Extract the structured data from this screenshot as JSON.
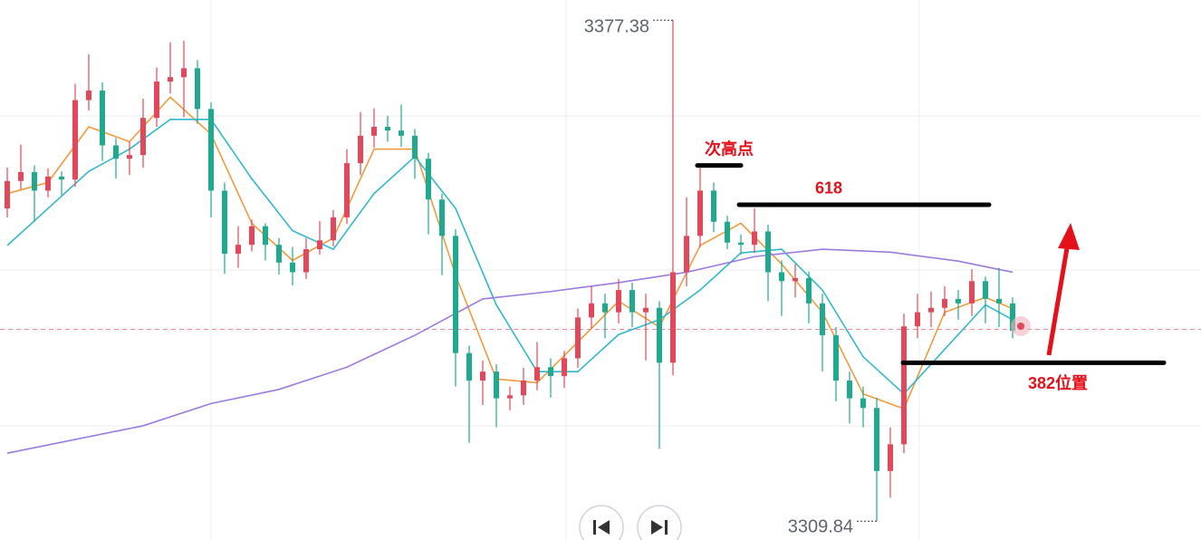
{
  "chart_data": {
    "type": "candlestick",
    "ylim": [
      3307.3,
      3380.1
    ],
    "up_color": "#e2485a",
    "down_color": "#1fa98e",
    "open": [
      3352.0,
      3355.7,
      3356.9,
      3354.4,
      3356.3,
      3355.9,
      3366.6,
      3367.9,
      3360.5,
      3358.7,
      3359.2,
      3364.2,
      3369.1,
      3369.7,
      3370.9,
      3365.4,
      3354.4,
      3345.9,
      3347.1,
      3349.6,
      3347.1,
      3344.7,
      3343.4,
      3346.5,
      3347.7,
      3350.8,
      3358.1,
      3361.8,
      3363.0,
      3362.5,
      3361.8,
      3358.7,
      3353.2,
      3348.3,
      3332.5,
      3328.8,
      3330.0,
      3326.4,
      3326.8,
      3328.8,
      3330.6,
      3329.4,
      3331.8,
      3337.3,
      3339.2,
      3338.0,
      3341.0,
      3338.0,
      3338.6,
      3331.2,
      3343.4,
      3348.3,
      3354.4,
      3350.2,
      3347.4,
      3347.1,
      3348.9,
      3343.4,
      3342.2,
      3342.6,
      3339.2,
      3334.9,
      3328.8,
      3326.4,
      3325.1,
      3316.6,
      3320.2,
      3336.1,
      3338.0,
      3338.6,
      3339.8,
      3339.2,
      3342.2,
      3339.8,
      3339.2
    ],
    "high": [
      3357.5,
      3360.6,
      3357.8,
      3357.4,
      3357.0,
      3368.8,
      3372.8,
      3369.0,
      3361.5,
      3361.0,
      3366.8,
      3371.0,
      3374.4,
      3374.6,
      3372.0,
      3366.3,
      3355.5,
      3349.6,
      3350.5,
      3350.0,
      3348.0,
      3346.8,
      3348.0,
      3350.3,
      3351.8,
      3360.0,
      3365.0,
      3365.5,
      3364.5,
      3366.0,
      3362.7,
      3359.5,
      3354.0,
      3349.2,
      3333.5,
      3331.5,
      3331.0,
      3328.0,
      3330.5,
      3334.0,
      3331.8,
      3332.8,
      3338.5,
      3341.5,
      3340.5,
      3342.5,
      3342.0,
      3340.5,
      3339.5,
      3377.38,
      3353.5,
      3357.9,
      3355.5,
      3351.0,
      3348.5,
      3352.0,
      3349.8,
      3345.0,
      3344.5,
      3343.5,
      3340.5,
      3336.0,
      3330.0,
      3328.0,
      3326.5,
      3322.5,
      3337.8,
      3340.5,
      3340.8,
      3341.5,
      3341.0,
      3343.8,
      3342.8,
      3344.0,
      3340.0
    ],
    "low": [
      3350.8,
      3354.6,
      3350.2,
      3353.5,
      3353.8,
      3354.9,
      3365.2,
      3358.4,
      3356.0,
      3356.5,
      3357.5,
      3363.0,
      3367.5,
      3364.3,
      3363.4,
      3350.8,
      3343.2,
      3344.0,
      3346.2,
      3345.0,
      3343.1,
      3341.6,
      3342.5,
      3345.8,
      3346.9,
      3349.9,
      3356.5,
      3360.2,
      3361.0,
      3360.3,
      3356.0,
      3348.5,
      3343.0,
      3328.0,
      3320.4,
      3325.5,
      3322.5,
      3324.8,
      3325.5,
      3327.5,
      3326.5,
      3327.8,
      3330.5,
      3335.8,
      3334.5,
      3336.5,
      3336.0,
      3331.5,
      3319.6,
      3329.5,
      3341.5,
      3346.8,
      3348.8,
      3346.5,
      3345.8,
      3346.0,
      3339.5,
      3337.5,
      3340.0,
      3336.5,
      3330.0,
      3326.0,
      3323.0,
      3322.5,
      3309.84,
      3313.0,
      3319.0,
      3334.5,
      3336.0,
      3337.5,
      3337.0,
      3337.5,
      3336.5,
      3336.0,
      3334.5
    ],
    "close": [
      3355.7,
      3356.9,
      3354.4,
      3356.3,
      3355.9,
      3366.6,
      3367.9,
      3360.5,
      3358.7,
      3359.2,
      3364.2,
      3369.1,
      3369.7,
      3370.9,
      3365.4,
      3354.4,
      3345.9,
      3347.1,
      3349.6,
      3347.1,
      3344.7,
      3343.4,
      3346.5,
      3347.7,
      3350.8,
      3358.1,
      3361.8,
      3363.0,
      3362.5,
      3361.8,
      3358.7,
      3353.2,
      3348.3,
      3332.5,
      3328.8,
      3330.0,
      3326.4,
      3326.8,
      3328.8,
      3330.6,
      3329.4,
      3331.8,
      3337.3,
      3339.2,
      3338.0,
      3341.0,
      3338.0,
      3338.6,
      3331.2,
      3343.4,
      3348.3,
      3354.4,
      3350.2,
      3347.4,
      3347.1,
      3348.9,
      3343.4,
      3342.2,
      3342.6,
      3339.2,
      3334.9,
      3328.8,
      3326.4,
      3325.1,
      3316.6,
      3320.2,
      3336.1,
      3338.0,
      3338.6,
      3339.8,
      3339.2,
      3342.2,
      3339.8,
      3339.2,
      3335.5
    ],
    "moving_averages": [
      {
        "color": "#f29a3c",
        "x": [
          0,
          3,
          6,
          9,
          12,
          15,
          18,
          21,
          24,
          27,
          30,
          33,
          36,
          39,
          42,
          45,
          48,
          51,
          54,
          57,
          60,
          63,
          66,
          69,
          72,
          74
        ],
        "values": [
          3354,
          3355.5,
          3363,
          3361,
          3367,
          3362,
          3350,
          3345,
          3348,
          3360,
          3360,
          3343,
          3329,
          3328.5,
          3334,
          3339.5,
          3336,
          3347,
          3350,
          3344.5,
          3338,
          3327,
          3325,
          3338,
          3340,
          3338.5
        ]
      },
      {
        "color": "#2fb8d0",
        "x": [
          0,
          3,
          6,
          9,
          12,
          15,
          18,
          21,
          24,
          27,
          30,
          33,
          36,
          39,
          42,
          45,
          48,
          51,
          54,
          57,
          60,
          63,
          66,
          69,
          72,
          74
        ],
        "values": [
          3347,
          3352,
          3357,
          3360,
          3364,
          3364,
          3356,
          3349,
          3346.5,
          3354,
          3359,
          3352,
          3339,
          3330,
          3330,
          3335,
          3337,
          3341,
          3346,
          3346.5,
          3341,
          3332,
          3327,
          3333,
          3339,
          3337
        ]
      },
      {
        "color": "#9b7be0",
        "x": [
          0,
          10,
          15,
          20,
          25,
          30,
          35,
          40,
          45,
          50,
          55,
          60,
          65,
          70,
          74
        ],
        "values": [
          3319.0,
          3322.7,
          3325.7,
          3327.6,
          3330.6,
          3334.9,
          3339.8,
          3340.8,
          3342.0,
          3343.4,
          3345.5,
          3346.5,
          3346.1,
          3344.9,
          3343.4
        ]
      }
    ],
    "price_line": 3335.7,
    "annotations": [
      {
        "text": "次高点",
        "level": 3357.8
      },
      {
        "text": "618",
        "level": 3352.5
      },
      {
        "text": "382位置",
        "level": 3331.2
      }
    ]
  }
}
